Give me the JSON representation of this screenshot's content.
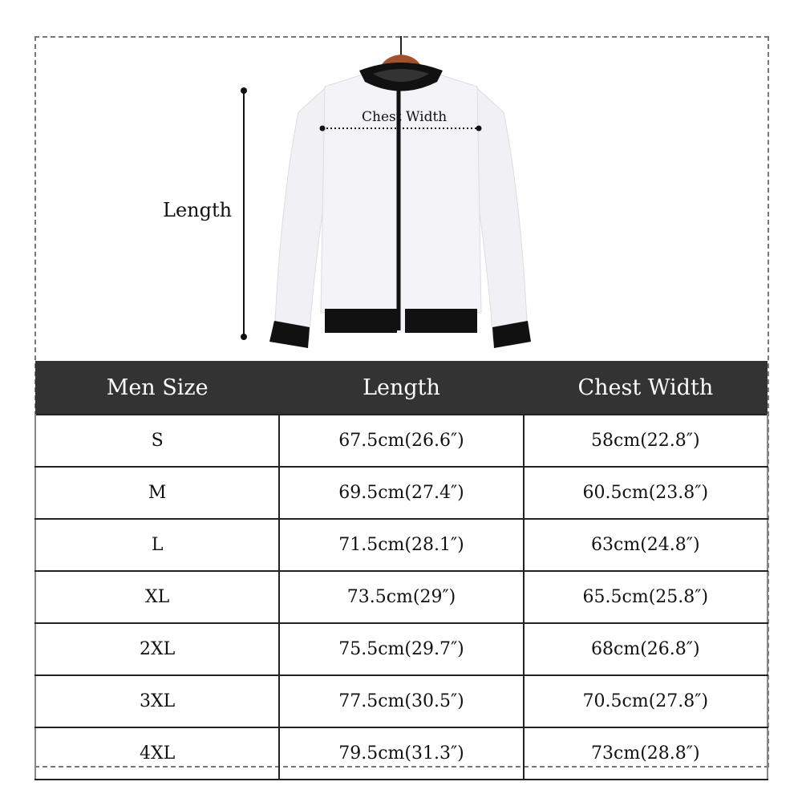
{
  "diagram": {
    "length_label": "Length",
    "chest_width_label": "Chest Width",
    "colors": {
      "garment": "#f4f3f8",
      "trim": "#111111",
      "hanger": "#a0522d"
    }
  },
  "table": {
    "headers": [
      "Men Size",
      "Length",
      "Chest Width"
    ],
    "header_color": "#333333",
    "rows": [
      [
        "S",
        "67.5cm(26.6″)",
        "58cm(22.8″)"
      ],
      [
        "M",
        "69.5cm(27.4″)",
        "60.5cm(23.8″)"
      ],
      [
        "L",
        "71.5cm(28.1″)",
        "63cm(24.8″)"
      ],
      [
        "XL",
        "73.5cm(29″)",
        "65.5cm(25.8″)"
      ],
      [
        "2XL",
        "75.5cm(29.7″)",
        "68cm(26.8″)"
      ],
      [
        "3XL",
        "77.5cm(30.5″)",
        "70.5cm(27.8″)"
      ],
      [
        "4XL",
        "79.5cm(31.3″)",
        "73cm(28.8″)"
      ]
    ]
  }
}
